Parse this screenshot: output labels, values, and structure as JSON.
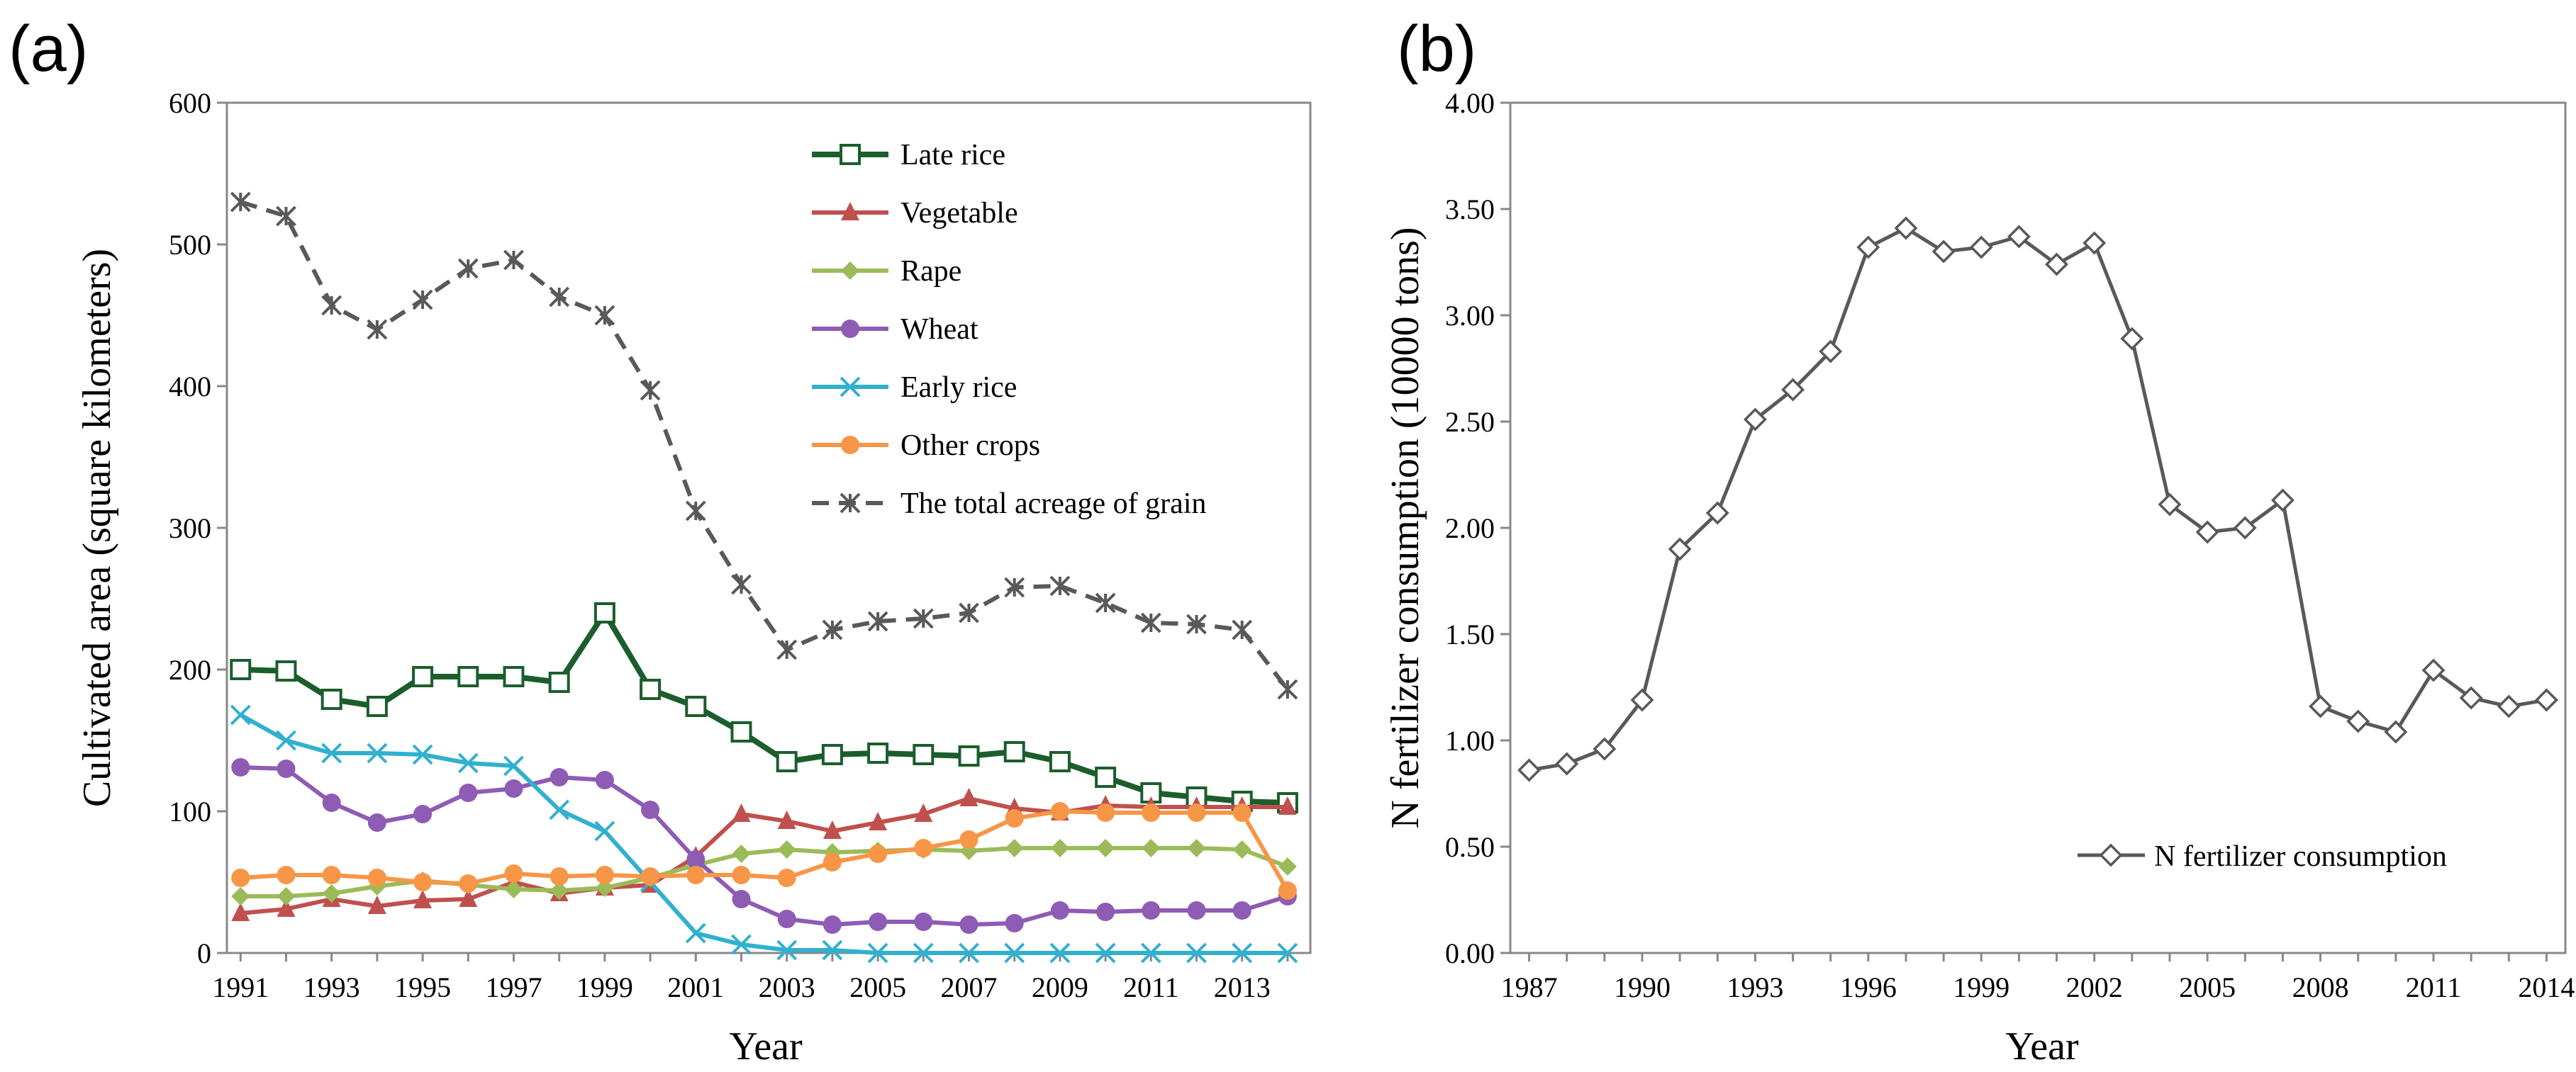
{
  "chart_data": [
    {
      "panel_label": "(a)",
      "type": "line",
      "xlabel": "Year",
      "ylabel": "Cultivated area (square kilometers)",
      "ylim": [
        0,
        600
      ],
      "yticks": [
        "0",
        "100",
        "200",
        "300",
        "400",
        "500",
        "600"
      ],
      "xticks": [
        "1991",
        "1993",
        "1995",
        "1997",
        "1999",
        "2001",
        "2003",
        "2005",
        "2007",
        "2009",
        "2011",
        "2013"
      ],
      "x": [
        1991,
        1992,
        1993,
        1994,
        1995,
        1996,
        1997,
        1998,
        1999,
        2000,
        2001,
        2002,
        2003,
        2004,
        2005,
        2006,
        2007,
        2008,
        2009,
        2010,
        2011,
        2012,
        2013,
        2014
      ],
      "legend_position": "top-right",
      "series": [
        {
          "name": "Late rice",
          "color": "#1b5e2c",
          "marker": "square-open",
          "dash": "solid",
          "values": [
            200,
            199,
            179,
            174,
            195,
            195,
            195,
            191,
            240,
            186,
            174,
            156,
            135,
            140,
            141,
            140,
            139,
            142,
            135,
            124,
            113,
            110,
            107,
            106
          ]
        },
        {
          "name": "Vegetable",
          "color": "#c0504d",
          "marker": "triangle",
          "dash": "solid",
          "values": [
            28,
            31,
            38,
            33,
            37,
            38,
            50,
            42,
            46,
            48,
            68,
            98,
            93,
            86,
            92,
            98,
            109,
            102,
            99,
            104,
            103,
            103,
            103,
            103
          ]
        },
        {
          "name": "Rape",
          "color": "#9bbb59",
          "marker": "diamond",
          "dash": "solid",
          "values": [
            40,
            40,
            42,
            47,
            51,
            48,
            45,
            44,
            46,
            53,
            62,
            70,
            73,
            71,
            72,
            73,
            72,
            74,
            74,
            74,
            74,
            74,
            73,
            61
          ]
        },
        {
          "name": "Wheat",
          "color": "#8e5bb5",
          "marker": "circle",
          "dash": "solid",
          "values": [
            131,
            130,
            106,
            92,
            98,
            113,
            116,
            124,
            122,
            101,
            66,
            38,
            24,
            20,
            22,
            22,
            20,
            21,
            30,
            29,
            30,
            30,
            30,
            40
          ]
        },
        {
          "name": "Early rice",
          "color": "#31b0cf",
          "marker": "x",
          "dash": "solid",
          "values": [
            168,
            150,
            141,
            141,
            140,
            134,
            132,
            101,
            86,
            50,
            14,
            6,
            2,
            2,
            0,
            0,
            0,
            0,
            0,
            0,
            0,
            0,
            0,
            0
          ]
        },
        {
          "name": "Other crops",
          "color": "#f79646",
          "marker": "circle",
          "dash": "solid",
          "values": [
            53,
            55,
            55,
            53,
            50,
            49,
            56,
            54,
            55,
            54,
            55,
            55,
            53,
            64,
            70,
            74,
            80,
            95,
            100,
            99,
            99,
            99,
            99,
            44
          ]
        },
        {
          "name": "The total acreage of grain",
          "color": "#595959",
          "marker": "asterisk",
          "dash": "dashed",
          "values": [
            530,
            520,
            457,
            440,
            461,
            483,
            489,
            463,
            450,
            397,
            312,
            260,
            214,
            228,
            234,
            236,
            240,
            258,
            259,
            247,
            233,
            232,
            228,
            186
          ]
        }
      ]
    },
    {
      "panel_label": "(b)",
      "type": "line",
      "xlabel": "Year",
      "ylabel": "N fertilizer consumption (10000 tons)",
      "ylim": [
        0,
        4
      ],
      "yticks": [
        "0.00",
        "0.50",
        "1.00",
        "1.50",
        "2.00",
        "2.50",
        "3.00",
        "3.50",
        "4.00"
      ],
      "xticks": [
        "1987",
        "1990",
        "1993",
        "1996",
        "1999",
        "2002",
        "2005",
        "2008",
        "2011",
        "2014"
      ],
      "x": [
        1987,
        1988,
        1989,
        1990,
        1991,
        1992,
        1993,
        1994,
        1995,
        1996,
        1997,
        1998,
        1999,
        2000,
        2001,
        2002,
        2003,
        2004,
        2005,
        2006,
        2007,
        2008,
        2009,
        2010,
        2011,
        2012,
        2013,
        2014
      ],
      "legend_position": "bottom-right",
      "series": [
        {
          "name": "N fertilizer consumption",
          "color": "#595959",
          "marker": "diamond-open",
          "dash": "solid",
          "values": [
            0.86,
            0.89,
            0.96,
            1.19,
            1.9,
            2.07,
            2.51,
            2.65,
            2.83,
            3.32,
            3.41,
            3.3,
            3.32,
            3.37,
            3.24,
            3.34,
            2.89,
            2.11,
            1.98,
            2.0,
            2.13,
            1.16,
            1.09,
            1.04,
            1.33,
            1.2,
            1.16,
            1.19
          ]
        }
      ]
    }
  ]
}
